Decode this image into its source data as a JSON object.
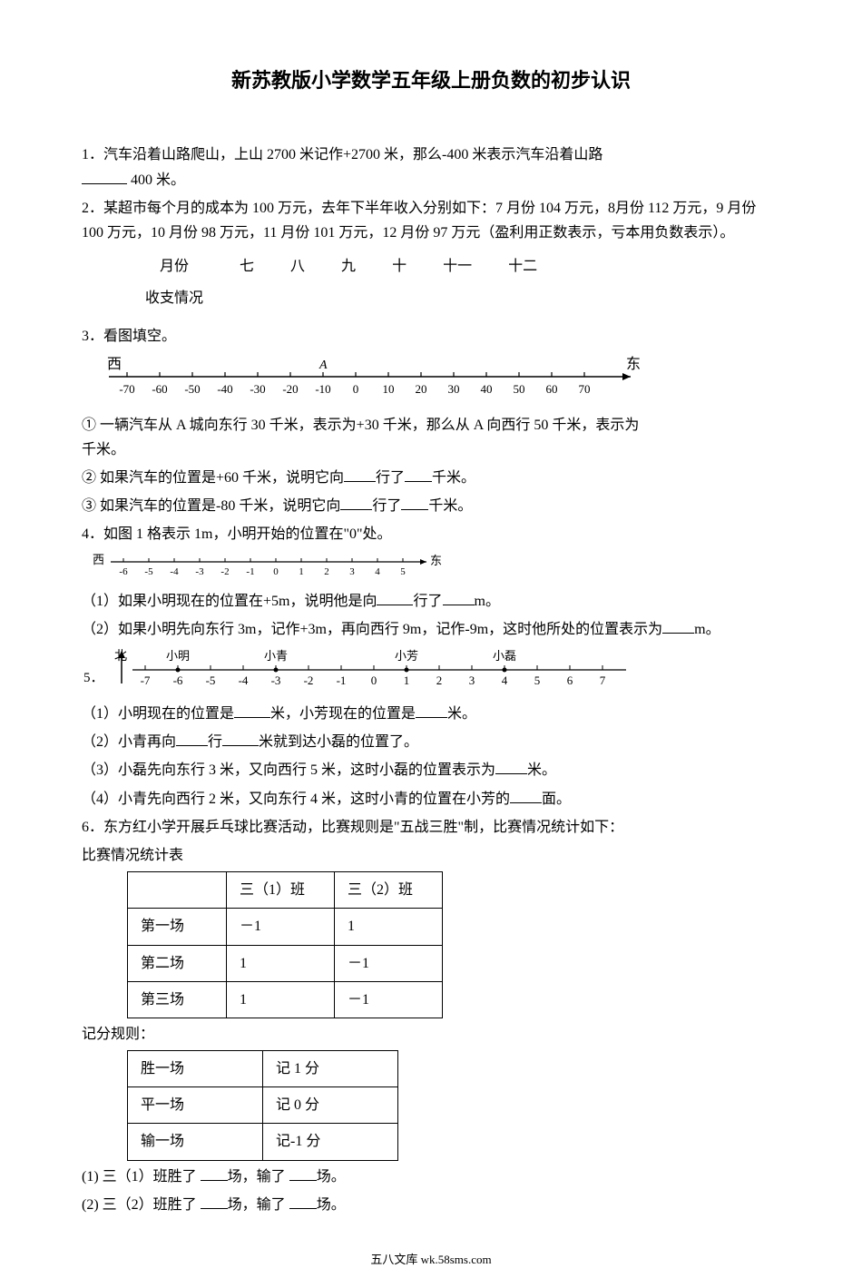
{
  "title": "新苏教版小学数学五年级上册负数的初步认识",
  "q1": {
    "prefix": "1．汽车沿着山路爬山，上山 2700 米记作+2700 米，那么-400 米表示汽车沿着山路",
    "suffix": "400 米。"
  },
  "q2": {
    "text": "2．某超市每个月的成本为 100 万元，去年下半年收入分别如下：7 月份 104 万元，8月份 112 万元，9 月份 100 万元，10 月份 98 万元，11 月份 101 万元，12 月份 97 万元（盈利用正数表示，亏本用负数表示）。",
    "header": [
      "月份",
      "七",
      "八",
      "九",
      "十",
      "十一",
      "十二"
    ],
    "row_label": "收支情况"
  },
  "q3": {
    "title": "3．看图填空。",
    "west": "西",
    "east": "东",
    "A_label": "A",
    "ticks": [
      "-70",
      "-60",
      "-50",
      "-40",
      "-30",
      "-20",
      "-10",
      "0",
      "10",
      "20",
      "30",
      "40",
      "50",
      "60",
      "70"
    ],
    "s1": "① 一辆汽车从 A 城向东行 30 千米，表示为+30 千米，那么从 A 向西行 50 千米，表示为",
    "s1_suffix": "千米。",
    "s2a": "② 如果汽车的位置是+60 千米，说明它向",
    "s2b": "行了",
    "s2c": "千米。",
    "s3a": "③ 如果汽车的位置是-80 千米，说明它向",
    "s3b": "行了",
    "s3c": "千米。"
  },
  "q4": {
    "title": "4．如图 1 格表示 1m，小明开始的位置在\"0\"处。",
    "west": "西",
    "east": "东",
    "ticks": [
      "-6",
      "-5",
      "-4",
      "-3",
      "-2",
      "-1",
      "0",
      "1",
      "2",
      "3",
      "4",
      "5"
    ],
    "s1a": "（1）如果小明现在的位置在+5m，说明他是向",
    "s1b": "行了",
    "s1c": "m。",
    "s2a": "（2）如果小明先向东行 3m，记作+3m，再向西行 9m，记作-9m，这时他所处的位置表示为",
    "s2b": "m。"
  },
  "q5": {
    "north": "北",
    "names": [
      "小明",
      "小青",
      "小芳",
      "小磊"
    ],
    "name_positions": [
      -6,
      -3,
      1,
      4
    ],
    "ticks": [
      "-7",
      "-6",
      "-5",
      "-4",
      "-3",
      "-2",
      "-1",
      "0",
      "1",
      "2",
      "3",
      "4",
      "5",
      "6",
      "7"
    ],
    "prefix": "5．",
    "s1a": "（1）小明现在的位置是",
    "s1b": "米，小芳现在的位置是",
    "s1c": "米。",
    "s2a": "（2）小青再向",
    "s2b": "行",
    "s2c": "米就到达小磊的位置了。",
    "s3a": "（3）小磊先向东行 3 米，又向西行 5 米，这时小磊的位置表示为",
    "s3b": "米。",
    "s4a": "（4）小青先向西行 2 米，又向东行 4 米，这时小青的位置在小芳的",
    "s4b": "面。"
  },
  "q6": {
    "title": "6．东方红小学开展乒乓球比赛活动，比赛规则是\"五战三胜\"制，比赛情况统计如下：",
    "caption": "比赛情况统计表",
    "columns": [
      "",
      "三（1）班",
      "三（2）班"
    ],
    "rows": [
      [
        "第一场",
        "－1",
        "1"
      ],
      [
        "第二场",
        "1",
        "－1"
      ],
      [
        "第三场",
        "1",
        "－1"
      ]
    ],
    "rules_caption": "记分规则：",
    "rules": [
      [
        "胜一场",
        "记 1 分"
      ],
      [
        "平一场",
        "记 0 分"
      ],
      [
        "输一场",
        "记-1 分"
      ]
    ],
    "s1a": "(1) 三（1）班胜了 ",
    "s1b": "场，输了 ",
    "s1c": "场。",
    "s2a": "(2) 三（2）班胜了 ",
    "s2b": "场，输了 ",
    "s2c": "场。"
  },
  "footer": "五八文库 wk.58sms.com"
}
